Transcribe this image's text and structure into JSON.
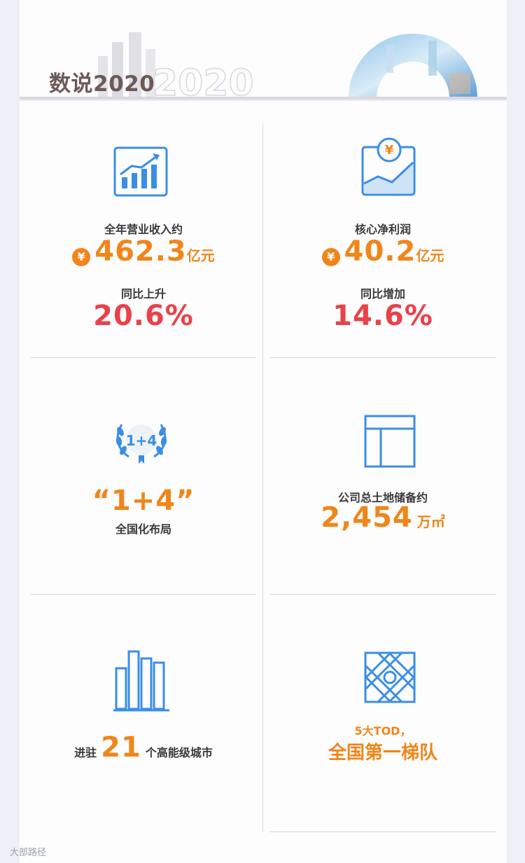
{
  "header": {
    "title": "数说2020",
    "deco_text": "2020"
  },
  "cards": {
    "revenue": {
      "label": "全年营业收入约",
      "currency": "¥",
      "value": "462.3",
      "unit": "亿元",
      "change_label": "同比上升",
      "change_value": "20.6%"
    },
    "profit": {
      "label": "核心净利润",
      "currency": "¥",
      "icon_currency": "¥",
      "value": "40.2",
      "unit": "亿元",
      "change_label": "同比增加",
      "change_value": "14.6%"
    },
    "layout": {
      "badge": "1+4",
      "value": "“1+4”",
      "label": "全国化布局"
    },
    "land": {
      "label": "公司总土地储备约",
      "value": "2,454",
      "unit": "万㎡"
    },
    "cities": {
      "prefix": "进驻",
      "value": "21",
      "suffix": "个高能级城市"
    },
    "tod": {
      "line1": "5大TOD，",
      "line2": "全国第一梯队"
    }
  },
  "watermark": "大部路径",
  "colors": {
    "accent_orange": "#f0861a",
    "accent_red": "#e8424a",
    "icon_blue": "#3a8ee6",
    "title_brown": "#6d5a56"
  }
}
